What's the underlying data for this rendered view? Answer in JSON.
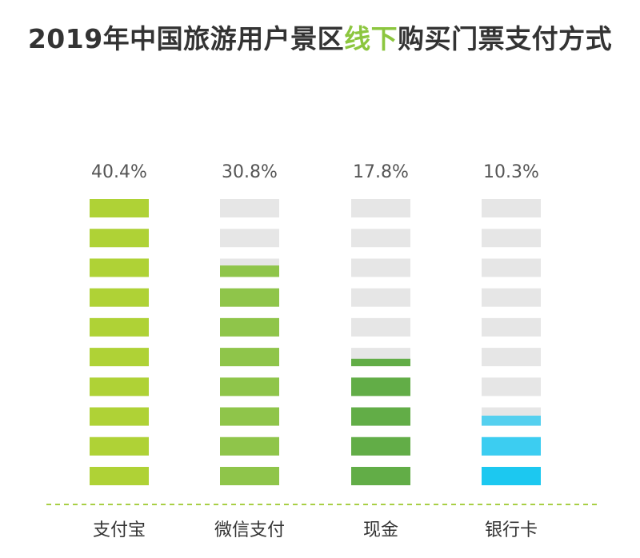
{
  "title": {
    "before": "2019年中国旅游用户景区",
    "highlight": "线下",
    "after": "购买门票支付方式"
  },
  "colors": {
    "empty": "#e6e6e6",
    "baseline": "#a8cf45",
    "highlight": "#8cc63f"
  },
  "chart_data": {
    "type": "bar",
    "title": "2019年中国旅游用户景区线下购买门票支付方式",
    "categories": [
      "支付宝",
      "微信支付",
      "现金",
      "银行卡"
    ],
    "values": [
      40.4,
      30.8,
      17.8,
      10.3
    ],
    "labels": [
      "40.4%",
      "30.8%",
      "17.8%",
      "10.3%"
    ],
    "ylim": [
      0,
      40.4
    ],
    "segments_per_bar": 10,
    "fill_colors": [
      [
        "#afd236"
      ],
      [
        "#8fc54a"
      ],
      [
        "#62ad47"
      ],
      [
        "#1cc8f0",
        "#3ccdf1",
        "#55d0ef",
        "#6fd3ee",
        "#7dd5ec",
        "#8fd8ea",
        "#a4dcea",
        "#b9e1ea",
        "#cce6eb",
        "#dcebed"
      ]
    ]
  }
}
